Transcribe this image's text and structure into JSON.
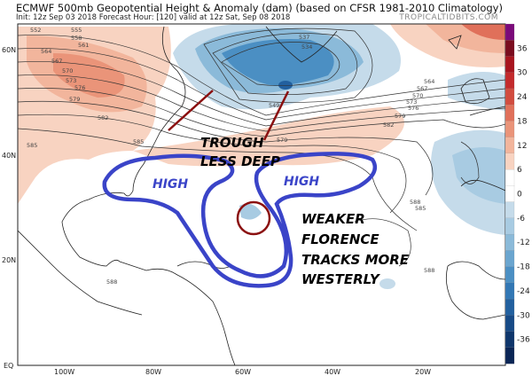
{
  "header": {
    "title": "ECMWF 500mb Geopotential Height & Anomaly (dam) (based on CFSR 1981-2010 Climatology)",
    "subtitle": "Init: 12z Sep 03 2018   Forecast Hour: [120]   valid at 12z Sat, Sep 08 2018",
    "brand": "TROPICALTIDBITS.COM"
  },
  "map": {
    "lat_labels": [
      "60N",
      "40N",
      "20N",
      "EQ"
    ],
    "lon_labels": [
      "100W",
      "80W",
      "60W",
      "40W",
      "20W"
    ],
    "contour_labels": [
      "552",
      "555",
      "558",
      "561",
      "564",
      "567",
      "570",
      "573",
      "576",
      "579",
      "582",
      "585",
      "585",
      "588",
      "537",
      "534",
      "549",
      "564",
      "567",
      "570",
      "573",
      "576",
      "579",
      "582",
      "579",
      "585",
      "588",
      "588"
    ],
    "colorbar": {
      "ticks": [
        "36",
        "30",
        "24",
        "18",
        "12",
        "6",
        "0",
        "-6",
        "-12",
        "-18",
        "-24",
        "-30",
        "-36"
      ],
      "colors": [
        "#7b0a7a",
        "#7a0c1e",
        "#a8141e",
        "#c32a2c",
        "#d14c3f",
        "#e0705a",
        "#ea9479",
        "#f2b59c",
        "#f8d3c1",
        "#ffffff",
        "#ffffff",
        "#c5dbea",
        "#a8cbe2",
        "#8bbad9",
        "#6aa5cf",
        "#4b8fc3",
        "#3277b4",
        "#22609f",
        "#174a86",
        "#0f366b",
        "#0a2555"
      ]
    }
  },
  "annotations": {
    "trough_line1": "TROUGH",
    "trough_line2": "LESS DEEP",
    "high_west": "HIGH",
    "high_east": "HIGH",
    "florence": [
      "WEAKER",
      "FLORENCE",
      "TRACKS MORE",
      "WESTERLY"
    ],
    "colors": {
      "outline": "#3a44c8",
      "arrows": "#8b1010",
      "circle": "#8b1010"
    }
  }
}
